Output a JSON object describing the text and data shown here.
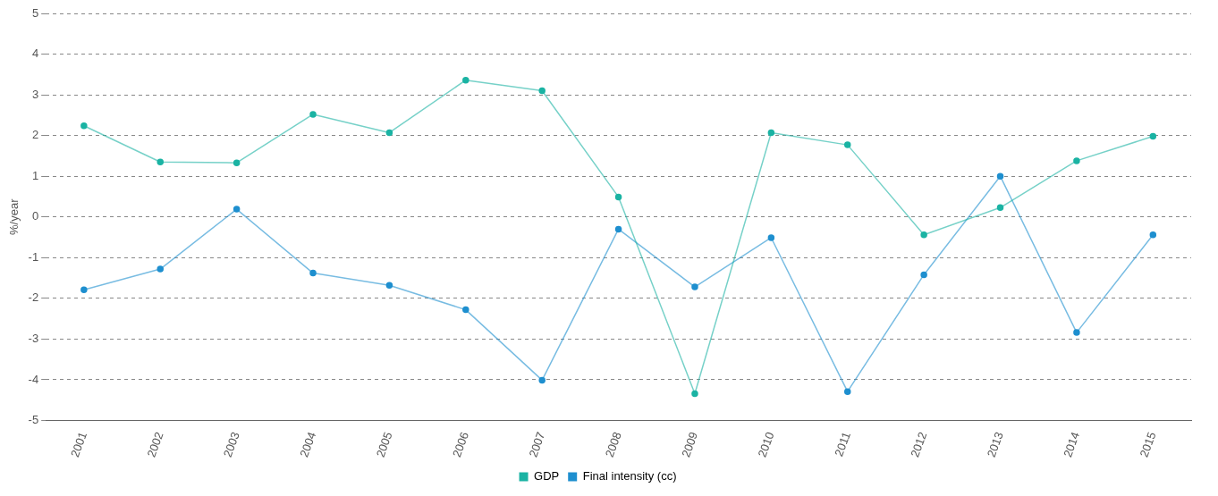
{
  "chart_data": {
    "type": "line",
    "ylabel": "%/year",
    "categories": [
      "2001",
      "2002",
      "2003",
      "2004",
      "2005",
      "2006",
      "2007",
      "2008",
      "2009",
      "2010",
      "2011",
      "2012",
      "2013",
      "2014",
      "2015"
    ],
    "series": [
      {
        "name": "GDP",
        "color": "#1ab3a3",
        "values": [
          2.24,
          1.35,
          1.33,
          2.52,
          2.07,
          3.36,
          3.1,
          0.49,
          -4.34,
          2.07,
          1.77,
          -0.44,
          0.23,
          1.38,
          1.98
        ]
      },
      {
        "name": "Final intensity (cc)",
        "color": "#1e8fcf",
        "values": [
          -1.79,
          -1.28,
          0.19,
          -1.38,
          -1.68,
          -2.28,
          -4.01,
          -0.3,
          -1.72,
          -0.51,
          -4.29,
          -1.42,
          1.0,
          -2.84,
          -0.44
        ]
      }
    ],
    "ylim": [
      -5,
      5
    ],
    "yticks": [
      -5,
      -4,
      -3,
      -2,
      -1,
      0,
      1,
      2,
      3,
      4,
      5
    ],
    "grid": "y",
    "legend": "bottom",
    "marker": "circle",
    "line_style": "solid"
  }
}
